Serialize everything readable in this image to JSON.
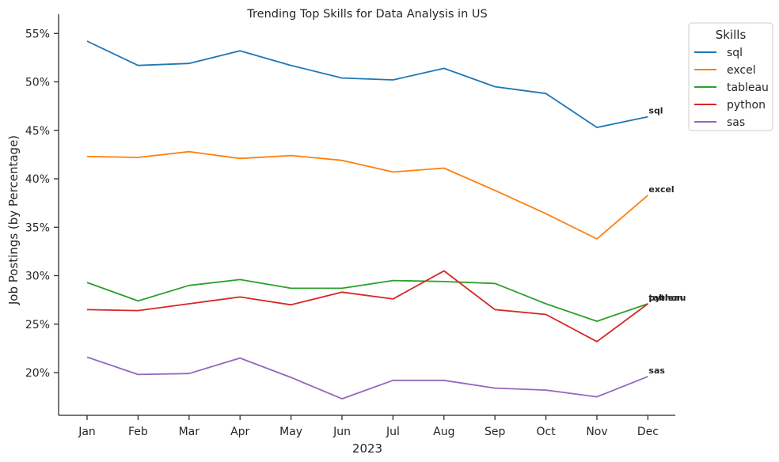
{
  "chart_data": {
    "type": "line",
    "title": "Trending Top Skills for Data Analysis in US",
    "xlabel": "2023",
    "ylabel": "Job Postings (by Percentage)",
    "categories": [
      "Jan",
      "Feb",
      "Mar",
      "Apr",
      "May",
      "Jun",
      "Jul",
      "Aug",
      "Sep",
      "Oct",
      "Nov",
      "Dec"
    ],
    "y_ticks": [
      "20%",
      "25%",
      "30%",
      "35%",
      "40%",
      "45%",
      "50%",
      "55%"
    ],
    "y_tick_values": [
      20,
      25,
      30,
      35,
      40,
      45,
      50,
      55
    ],
    "ylim": [
      15.5,
      56.5
    ],
    "grid": false,
    "legend": {
      "title": "Skills",
      "placement": "outside upper right"
    },
    "series": [
      {
        "name": "sql",
        "color": "#1f77b4",
        "values": [
          54.2,
          51.7,
          51.9,
          53.2,
          51.7,
          50.4,
          50.2,
          51.4,
          49.5,
          48.8,
          45.3,
          46.4
        ]
      },
      {
        "name": "excel",
        "color": "#ff7f0e",
        "values": [
          42.3,
          42.2,
          42.8,
          42.1,
          42.4,
          41.9,
          40.7,
          41.1,
          38.8,
          36.4,
          33.8,
          38.3
        ]
      },
      {
        "name": "tableau",
        "color": "#2ca02c",
        "values": [
          29.3,
          27.4,
          29.0,
          29.6,
          28.7,
          28.7,
          29.5,
          29.4,
          29.2,
          27.1,
          25.3,
          27.1
        ]
      },
      {
        "name": "python",
        "color": "#d62728",
        "values": [
          26.5,
          26.4,
          27.1,
          27.8,
          27.0,
          28.3,
          27.6,
          30.5,
          26.5,
          26.0,
          23.2,
          27.1
        ]
      },
      {
        "name": "sas",
        "color": "#9467bd",
        "values": [
          21.6,
          19.8,
          19.9,
          21.5,
          19.5,
          17.3,
          19.2,
          19.2,
          18.4,
          18.2,
          17.5,
          19.6
        ]
      }
    ],
    "end_labels": [
      "sql",
      "excel",
      "tableau",
      "python",
      "sas"
    ]
  }
}
